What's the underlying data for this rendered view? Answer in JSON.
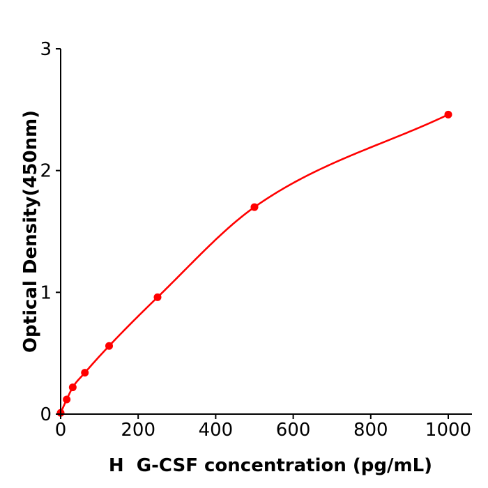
{
  "figure": {
    "background": "#ffffff"
  },
  "chart_data": {
    "type": "scatter",
    "title": "",
    "xlabel": "H  G-CSF concentration (pg/mL)",
    "ylabel": "Optical Density(450nm)",
    "x": [
      0,
      15.6,
      31.2,
      62.5,
      125,
      250,
      500,
      1000
    ],
    "y": [
      0.01,
      0.12,
      0.22,
      0.34,
      0.56,
      0.96,
      1.7,
      2.46
    ],
    "fit_curve": true,
    "xticks": [
      0,
      200,
      400,
      600,
      800,
      1000
    ],
    "yticks": [
      0,
      1,
      2,
      3
    ],
    "xlim": [
      0,
      1060
    ],
    "ylim": [
      0,
      3
    ],
    "grid": false,
    "legend_position": "none",
    "marker": "circle",
    "colors": {
      "series": "#ff0000",
      "axis": "#000000",
      "background": "#ffffff"
    }
  }
}
